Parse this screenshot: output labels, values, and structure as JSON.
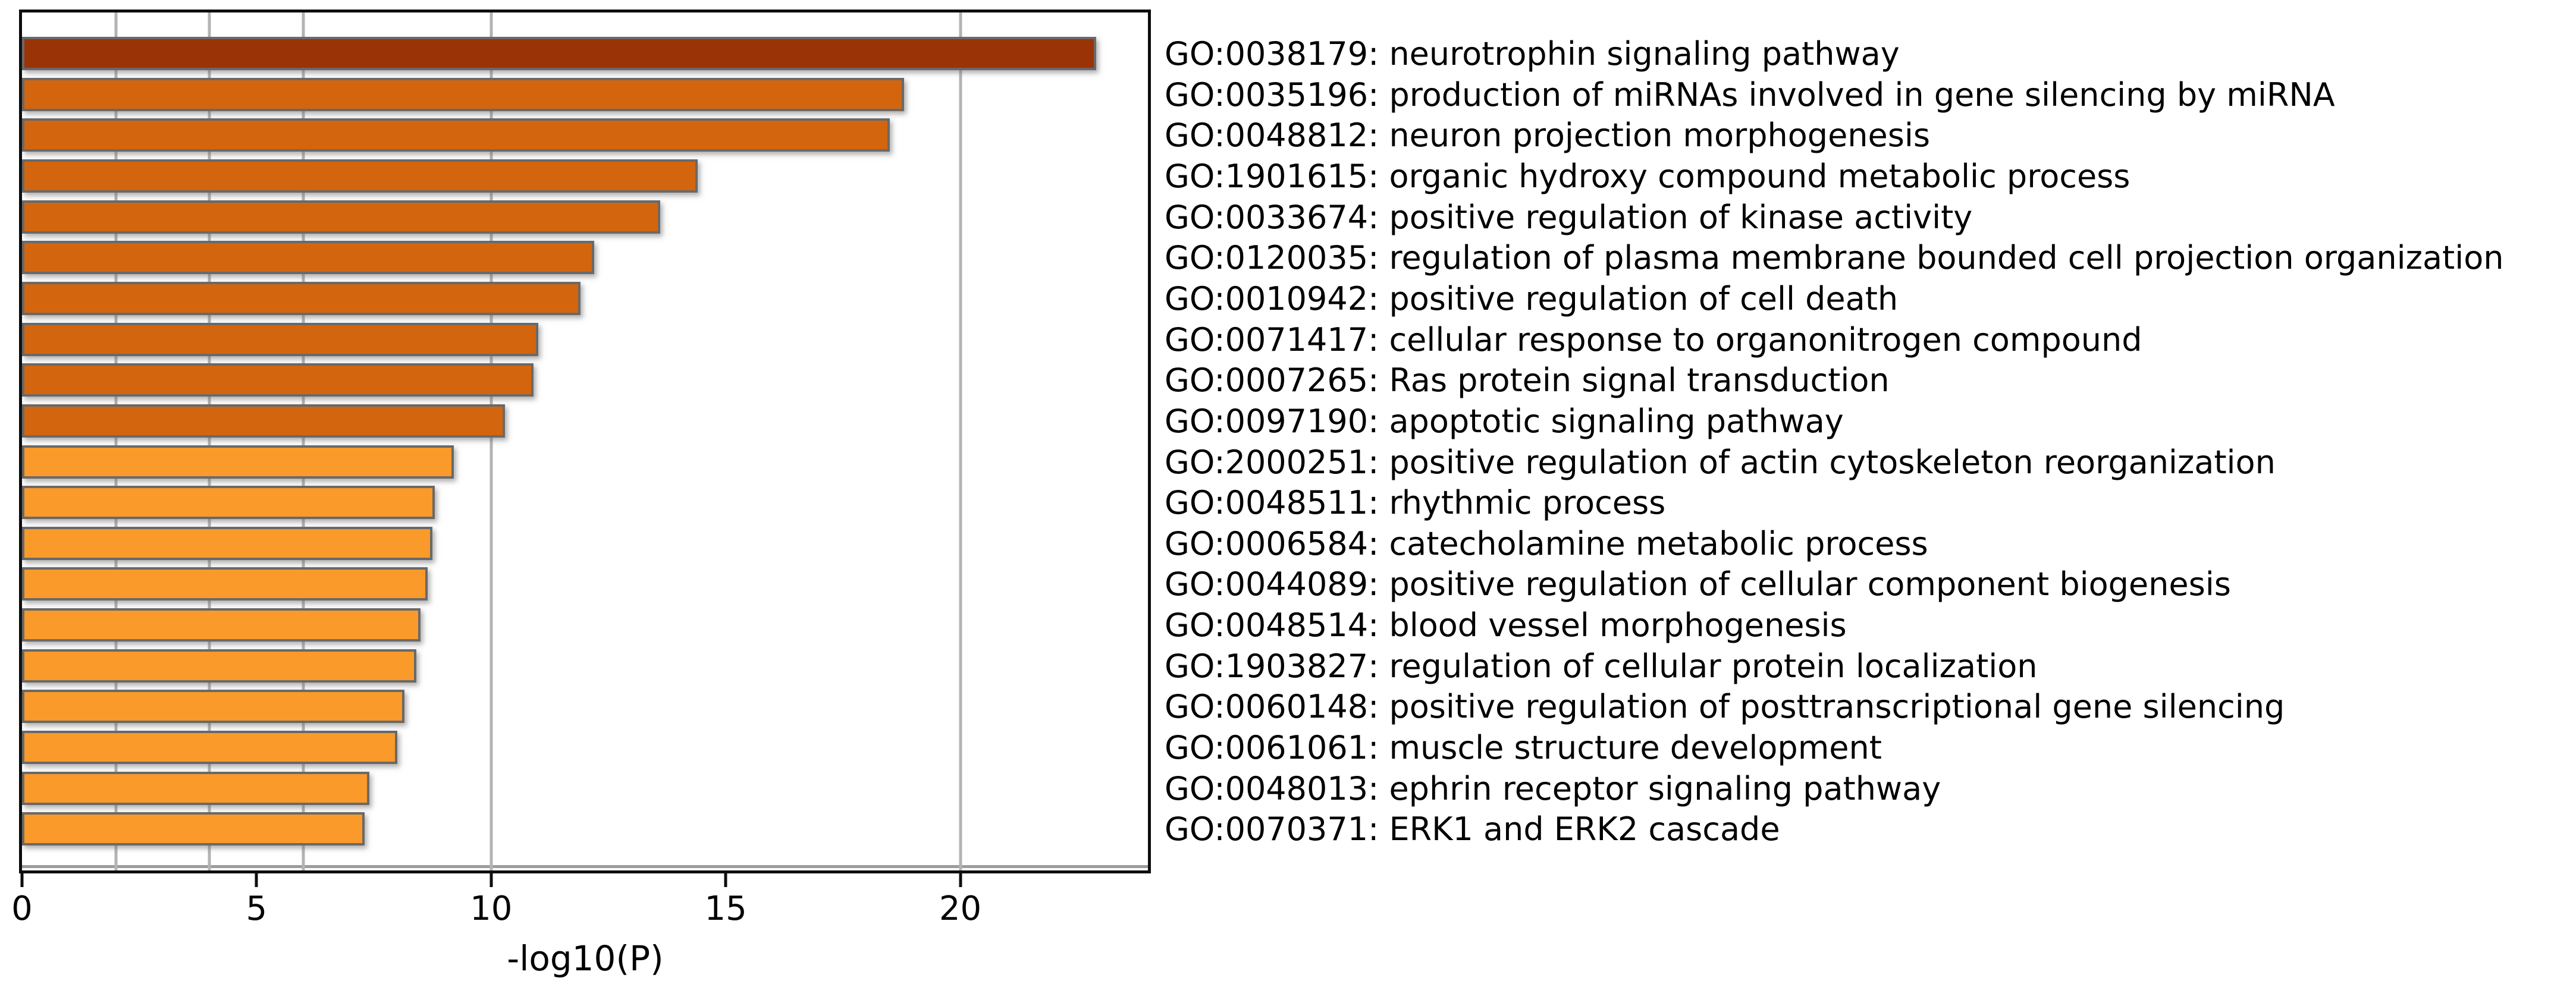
{
  "chart_data": {
    "type": "bar",
    "orientation": "horizontal",
    "title": "",
    "xlabel": "-log10(P)",
    "ylabel": "",
    "xlim": [
      0,
      24
    ],
    "xticks": [
      0,
      5,
      10,
      15,
      20
    ],
    "gridlines_x": [
      2,
      4,
      6,
      10,
      20
    ],
    "grid": true,
    "legend": "none",
    "categories": [
      "GO:0038179: neurotrophin signaling pathway",
      "GO:0035196: production of miRNAs involved in gene silencing by miRNA",
      "GO:0048812: neuron projection morphogenesis",
      "GO:1901615: organic hydroxy compound metabolic process",
      "GO:0033674: positive regulation of kinase activity",
      "GO:0120035: regulation of plasma membrane bounded cell projection organization",
      "GO:0010942: positive regulation of cell death",
      "GO:0071417: cellular response to organonitrogen compound",
      "GO:0007265: Ras protein signal transduction",
      "GO:0097190: apoptotic signaling pathway",
      "GO:2000251: positive regulation of actin cytoskeleton reorganization",
      "GO:0048511: rhythmic process",
      "GO:0006584: catecholamine metabolic process",
      "GO:0044089: positive regulation of cellular component biogenesis",
      "GO:0048514: blood vessel morphogenesis",
      "GO:1903827: regulation of cellular protein localization",
      "GO:0060148: positive regulation of posttranscriptional gene silencing",
      "GO:0061061: muscle structure development",
      "GO:0048013: ephrin receptor signaling pathway",
      "GO:0070371: ERK1 and ERK2 cascade"
    ],
    "values": [
      22.9,
      18.8,
      18.5,
      14.4,
      13.6,
      12.2,
      11.9,
      11.0,
      10.9,
      10.3,
      9.2,
      8.8,
      8.75,
      8.65,
      8.5,
      8.4,
      8.15,
      8.0,
      7.4,
      7.3
    ],
    "color_bins": [
      {
        "min_value": 20,
        "color": "#9A3306"
      },
      {
        "min_value": 10,
        "color": "#D3650E"
      },
      {
        "min_value": 6,
        "color": "#F99A2B"
      }
    ],
    "bar_border_color": "#696969",
    "gridline_color": "#B3B3B3",
    "axis_color": "#0D0D0D",
    "background_color": "#FFFFFF"
  }
}
